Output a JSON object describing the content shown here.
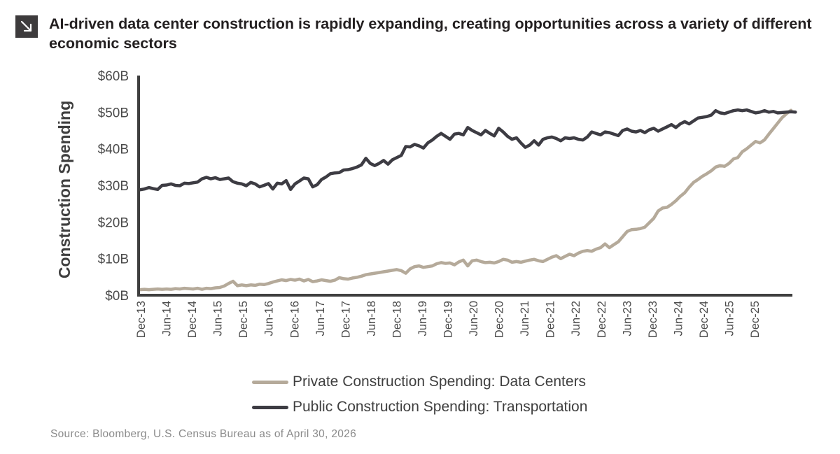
{
  "header": {
    "icon": "arrow-down-right-icon",
    "title": "AI-driven data center construction is rapidly expanding, creating opportunities across a variety of different economic sectors"
  },
  "source": "Source: Bloomberg, U.S. Census Bureau as of April 30, 2026",
  "chart_data": {
    "type": "line",
    "title": "AI-driven data center construction is rapidly expanding, creating opportunities across a variety of different economic sectors",
    "ylabel": "Construction Spending",
    "xlabel": "",
    "ylim": [
      0,
      60
    ],
    "yticks": [
      0,
      10,
      20,
      30,
      40,
      50,
      60
    ],
    "ytick_labels": [
      "$0B",
      "$10B",
      "$20B",
      "$30B",
      "$40B",
      "$50B",
      "$60B"
    ],
    "x_start": "Dec-13",
    "x_end": "Apr-26",
    "xtick_labels": [
      "Dec-13",
      "Jun-14",
      "Dec-14",
      "Jun-15",
      "Dec-15",
      "Jun-16",
      "Dec-16",
      "Jun-17",
      "Dec-17",
      "Jun-18",
      "Dec-18",
      "Jun-19",
      "Dec-19",
      "Jun-20",
      "Dec-20",
      "Jun-21",
      "Dec-21",
      "Jun-22",
      "Dec-22",
      "Jun-23",
      "Dec-23",
      "Jun-24",
      "Dec-24",
      "Jun-25",
      "Dec-25"
    ],
    "grid": false,
    "legend_position": "bottom-center",
    "series": [
      {
        "name": "Private Construction Spending: Data Centers",
        "color": "#b5aa9a",
        "values": [
          1.5,
          1.6,
          1.5,
          1.6,
          1.7,
          1.6,
          1.7,
          1.6,
          1.8,
          1.7,
          1.9,
          1.8,
          1.7,
          1.9,
          1.6,
          1.9,
          1.8,
          2.0,
          2.1,
          2.5,
          3.2,
          3.8,
          2.6,
          2.8,
          2.6,
          2.8,
          2.7,
          3.0,
          2.9,
          3.2,
          3.6,
          3.9,
          4.2,
          4.0,
          4.3,
          4.1,
          4.4,
          3.9,
          4.3,
          3.7,
          3.9,
          4.2,
          4.0,
          3.8,
          4.1,
          4.8,
          4.5,
          4.4,
          4.7,
          4.9,
          5.2,
          5.6,
          5.8,
          6.0,
          6.2,
          6.4,
          6.6,
          6.8,
          7.0,
          6.7,
          6.0,
          7.2,
          7.8,
          8.0,
          7.6,
          7.8,
          8.0,
          8.6,
          8.9,
          8.7,
          8.8,
          8.3,
          9.1,
          9.6,
          8.0,
          9.4,
          9.6,
          9.2,
          8.9,
          9.0,
          8.8,
          9.2,
          9.8,
          9.6,
          9.0,
          9.2,
          9.0,
          9.3,
          9.6,
          9.8,
          9.4,
          9.2,
          9.8,
          10.4,
          10.8,
          10.0,
          10.6,
          11.2,
          10.8,
          11.5,
          12.0,
          12.2,
          12.0,
          12.6,
          13.0,
          14.0,
          13.0,
          13.8,
          14.6,
          16.0,
          17.4,
          17.9,
          18.0,
          18.2,
          18.6,
          19.8,
          21.0,
          23.0,
          23.8,
          24.0,
          24.8,
          25.8,
          27.0,
          28.0,
          29.5,
          30.8,
          31.6,
          32.5,
          33.2,
          34.0,
          35.0,
          35.4,
          35.2,
          36.0,
          37.2,
          37.6,
          39.2,
          40.0,
          41.0,
          42.0,
          41.6,
          42.4,
          44.0,
          45.5,
          47.0,
          48.5,
          49.6,
          50.5
        ]
      },
      {
        "name": "Public Construction Spending: Transportation",
        "color": "#3d3c43",
        "values": [
          28.8,
          29.0,
          29.4,
          29.1,
          28.9,
          30.0,
          30.1,
          30.4,
          30.0,
          29.9,
          30.6,
          30.5,
          30.7,
          30.9,
          31.8,
          32.2,
          31.8,
          32.1,
          31.6,
          31.8,
          32.0,
          31.0,
          30.6,
          30.4,
          29.9,
          30.8,
          30.4,
          29.6,
          30.0,
          30.5,
          29.0,
          30.6,
          30.4,
          31.3,
          28.9,
          30.4,
          31.2,
          32.0,
          31.8,
          29.6,
          30.2,
          31.6,
          32.3,
          33.2,
          33.4,
          33.5,
          34.2,
          34.3,
          34.6,
          35.0,
          35.6,
          37.4,
          36.0,
          35.4,
          36.0,
          36.8,
          35.8,
          37.0,
          37.6,
          38.2,
          40.6,
          40.5,
          41.2,
          40.8,
          40.2,
          41.6,
          42.4,
          43.4,
          44.2,
          43.4,
          42.6,
          44.0,
          44.2,
          43.8,
          45.8,
          45.0,
          44.4,
          43.8,
          45.0,
          44.2,
          43.5,
          45.6,
          44.6,
          43.4,
          42.6,
          43.0,
          41.6,
          40.4,
          41.0,
          42.2,
          41.0,
          42.6,
          43.0,
          43.2,
          42.8,
          42.2,
          43.0,
          42.8,
          43.0,
          42.6,
          42.4,
          43.2,
          44.6,
          44.2,
          43.8,
          44.6,
          44.4,
          44.0,
          43.6,
          45.0,
          45.4,
          44.8,
          44.6,
          45.0,
          44.4,
          45.2,
          45.6,
          44.8,
          45.4,
          46.0,
          46.6,
          45.8,
          46.8,
          47.4,
          46.8,
          47.6,
          48.4,
          48.6,
          48.8,
          49.2,
          50.4,
          49.8,
          49.6,
          50.0,
          50.4,
          50.6,
          50.4,
          50.6,
          50.2,
          49.8,
          50.0,
          50.4,
          50.0,
          50.2,
          49.8,
          49.9,
          50.0,
          50.1,
          50.0
        ]
      }
    ]
  }
}
